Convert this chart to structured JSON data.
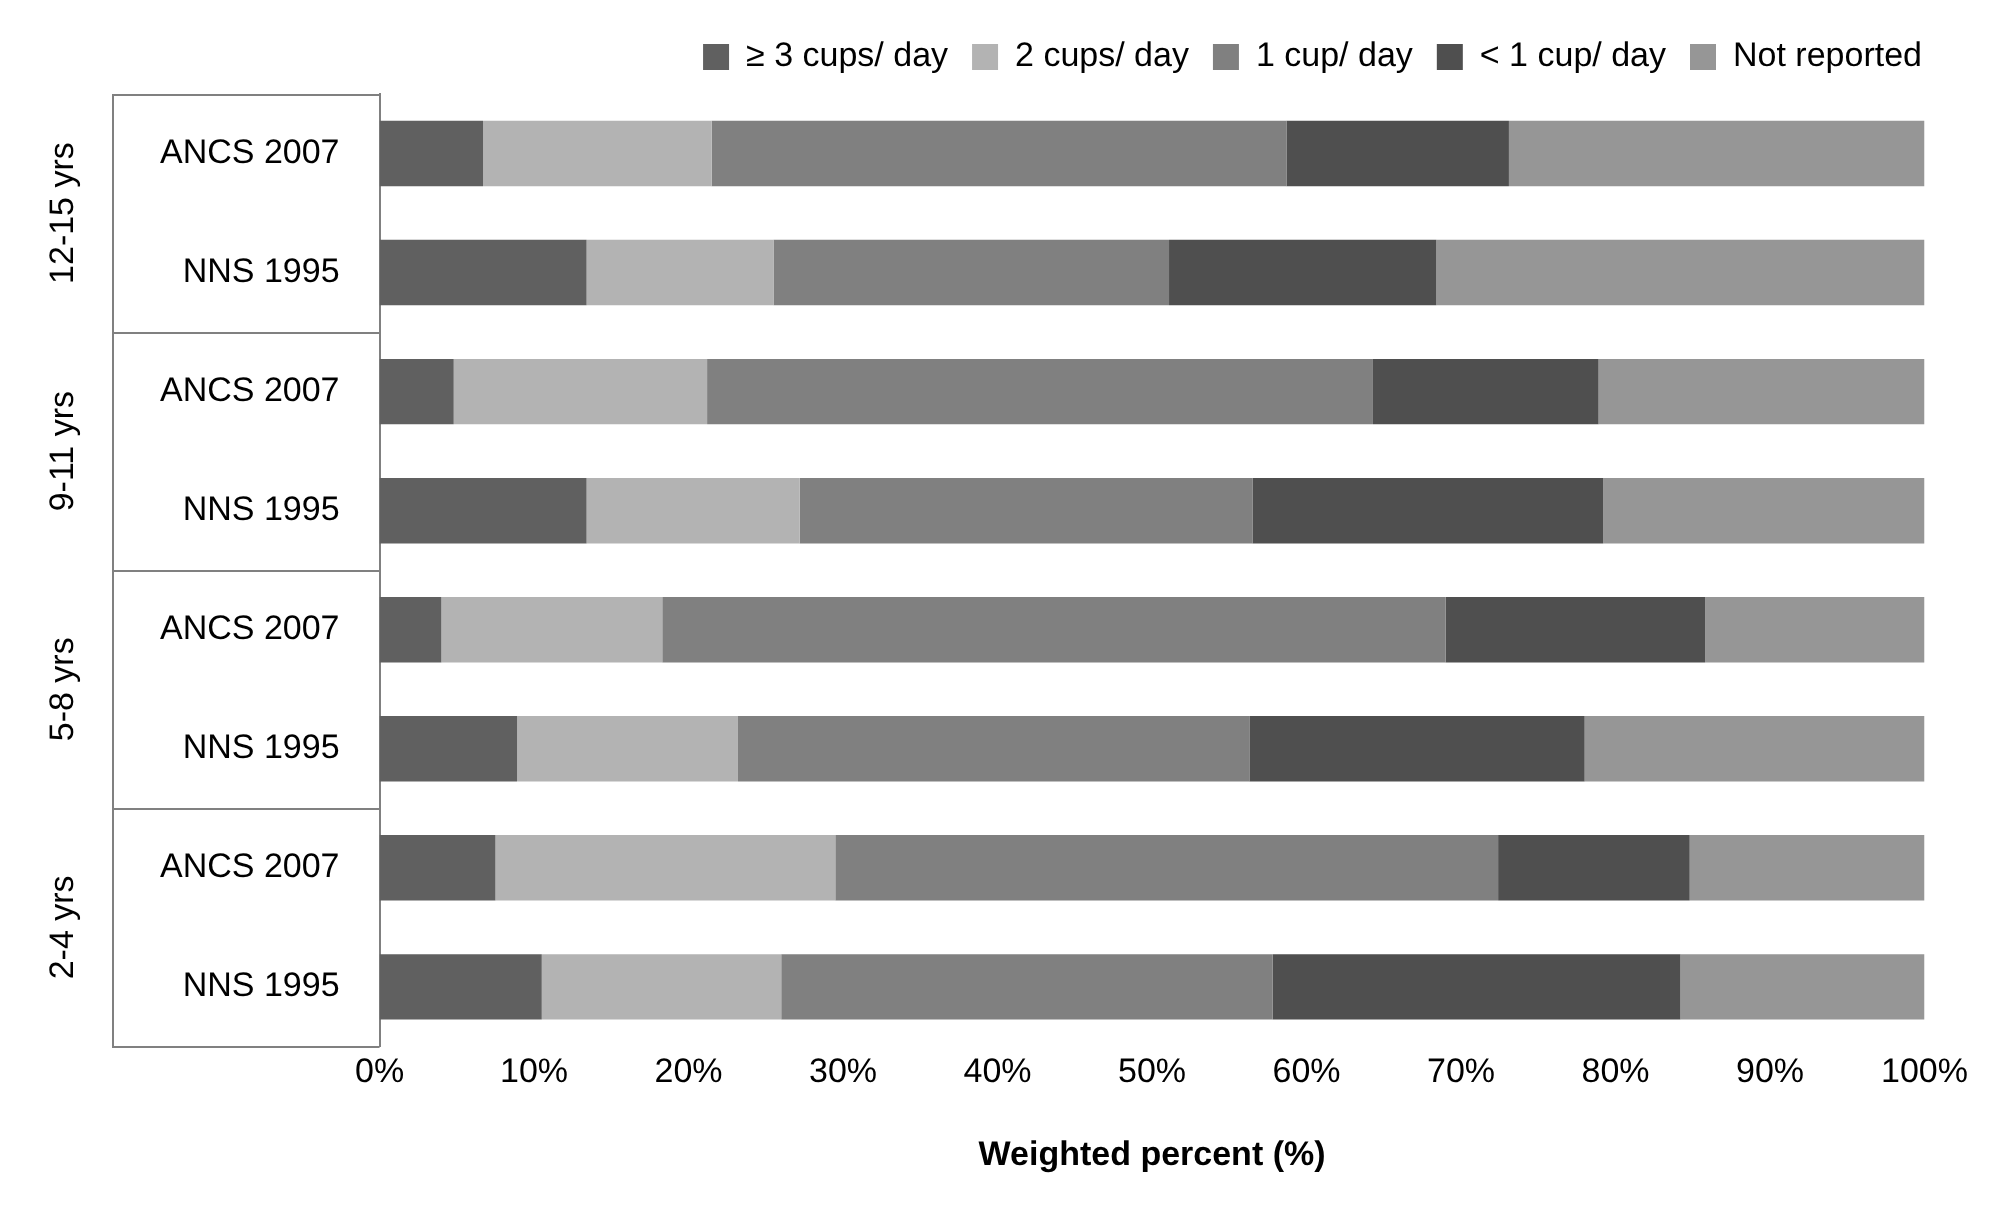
{
  "chart_data": {
    "type": "bar",
    "orientation": "horizontal",
    "stacked": true,
    "xlabel": "Weighted percent (%)",
    "categories": [
      "ANCS 2007",
      "NNS 1995",
      "ANCS 2007",
      "NNS 1995",
      "ANCS 2007",
      "NNS 1995",
      "ANCS 2007",
      "NNS 1995"
    ],
    "annotations": [
      "12-15 yrs",
      "9-11 yrs",
      "5-8 yrs",
      "2-4 yrs"
    ],
    "series": [
      {
        "name": "≥ 3 cups/ day",
        "color": "#606060",
        "values": [
          6.7,
          13.4,
          4.8,
          13.4,
          4.0,
          8.9,
          7.5,
          10.5
        ]
      },
      {
        "name": "2 cups/ day",
        "color": "#b3b3b3",
        "values": [
          14.8,
          12.1,
          16.4,
          13.8,
          14.3,
          14.3,
          22.0,
          15.5
        ]
      },
      {
        "name": "1 cup/ day",
        "color": "#808080",
        "values": [
          37.2,
          25.6,
          43.1,
          29.3,
          50.7,
          33.1,
          42.9,
          31.8
        ]
      },
      {
        "name": "< 1 cup/ day",
        "color": "#4f4f4f",
        "values": [
          14.4,
          17.3,
          14.6,
          22.7,
          16.8,
          21.7,
          12.4,
          26.4
        ]
      },
      {
        "name": "Not reported",
        "color": "#969696",
        "values": [
          26.9,
          31.6,
          21.1,
          20.8,
          14.2,
          22.0,
          15.2,
          15.8
        ]
      }
    ],
    "xlim": [
      0,
      100
    ],
    "xticks": [
      {
        "value": 0,
        "label": "0%"
      },
      {
        "value": 10,
        "label": "10%"
      },
      {
        "value": 20,
        "label": "20%"
      },
      {
        "value": 30,
        "label": "30%"
      },
      {
        "value": 40,
        "label": "40%"
      },
      {
        "value": 50,
        "label": "50%"
      },
      {
        "value": 60,
        "label": "60%"
      },
      {
        "value": 70,
        "label": "70%"
      },
      {
        "value": 80,
        "label": "80%"
      },
      {
        "value": 90,
        "label": "90%"
      },
      {
        "value": 100,
        "label": "100%"
      }
    ],
    "grid": false,
    "legend": "top right"
  }
}
